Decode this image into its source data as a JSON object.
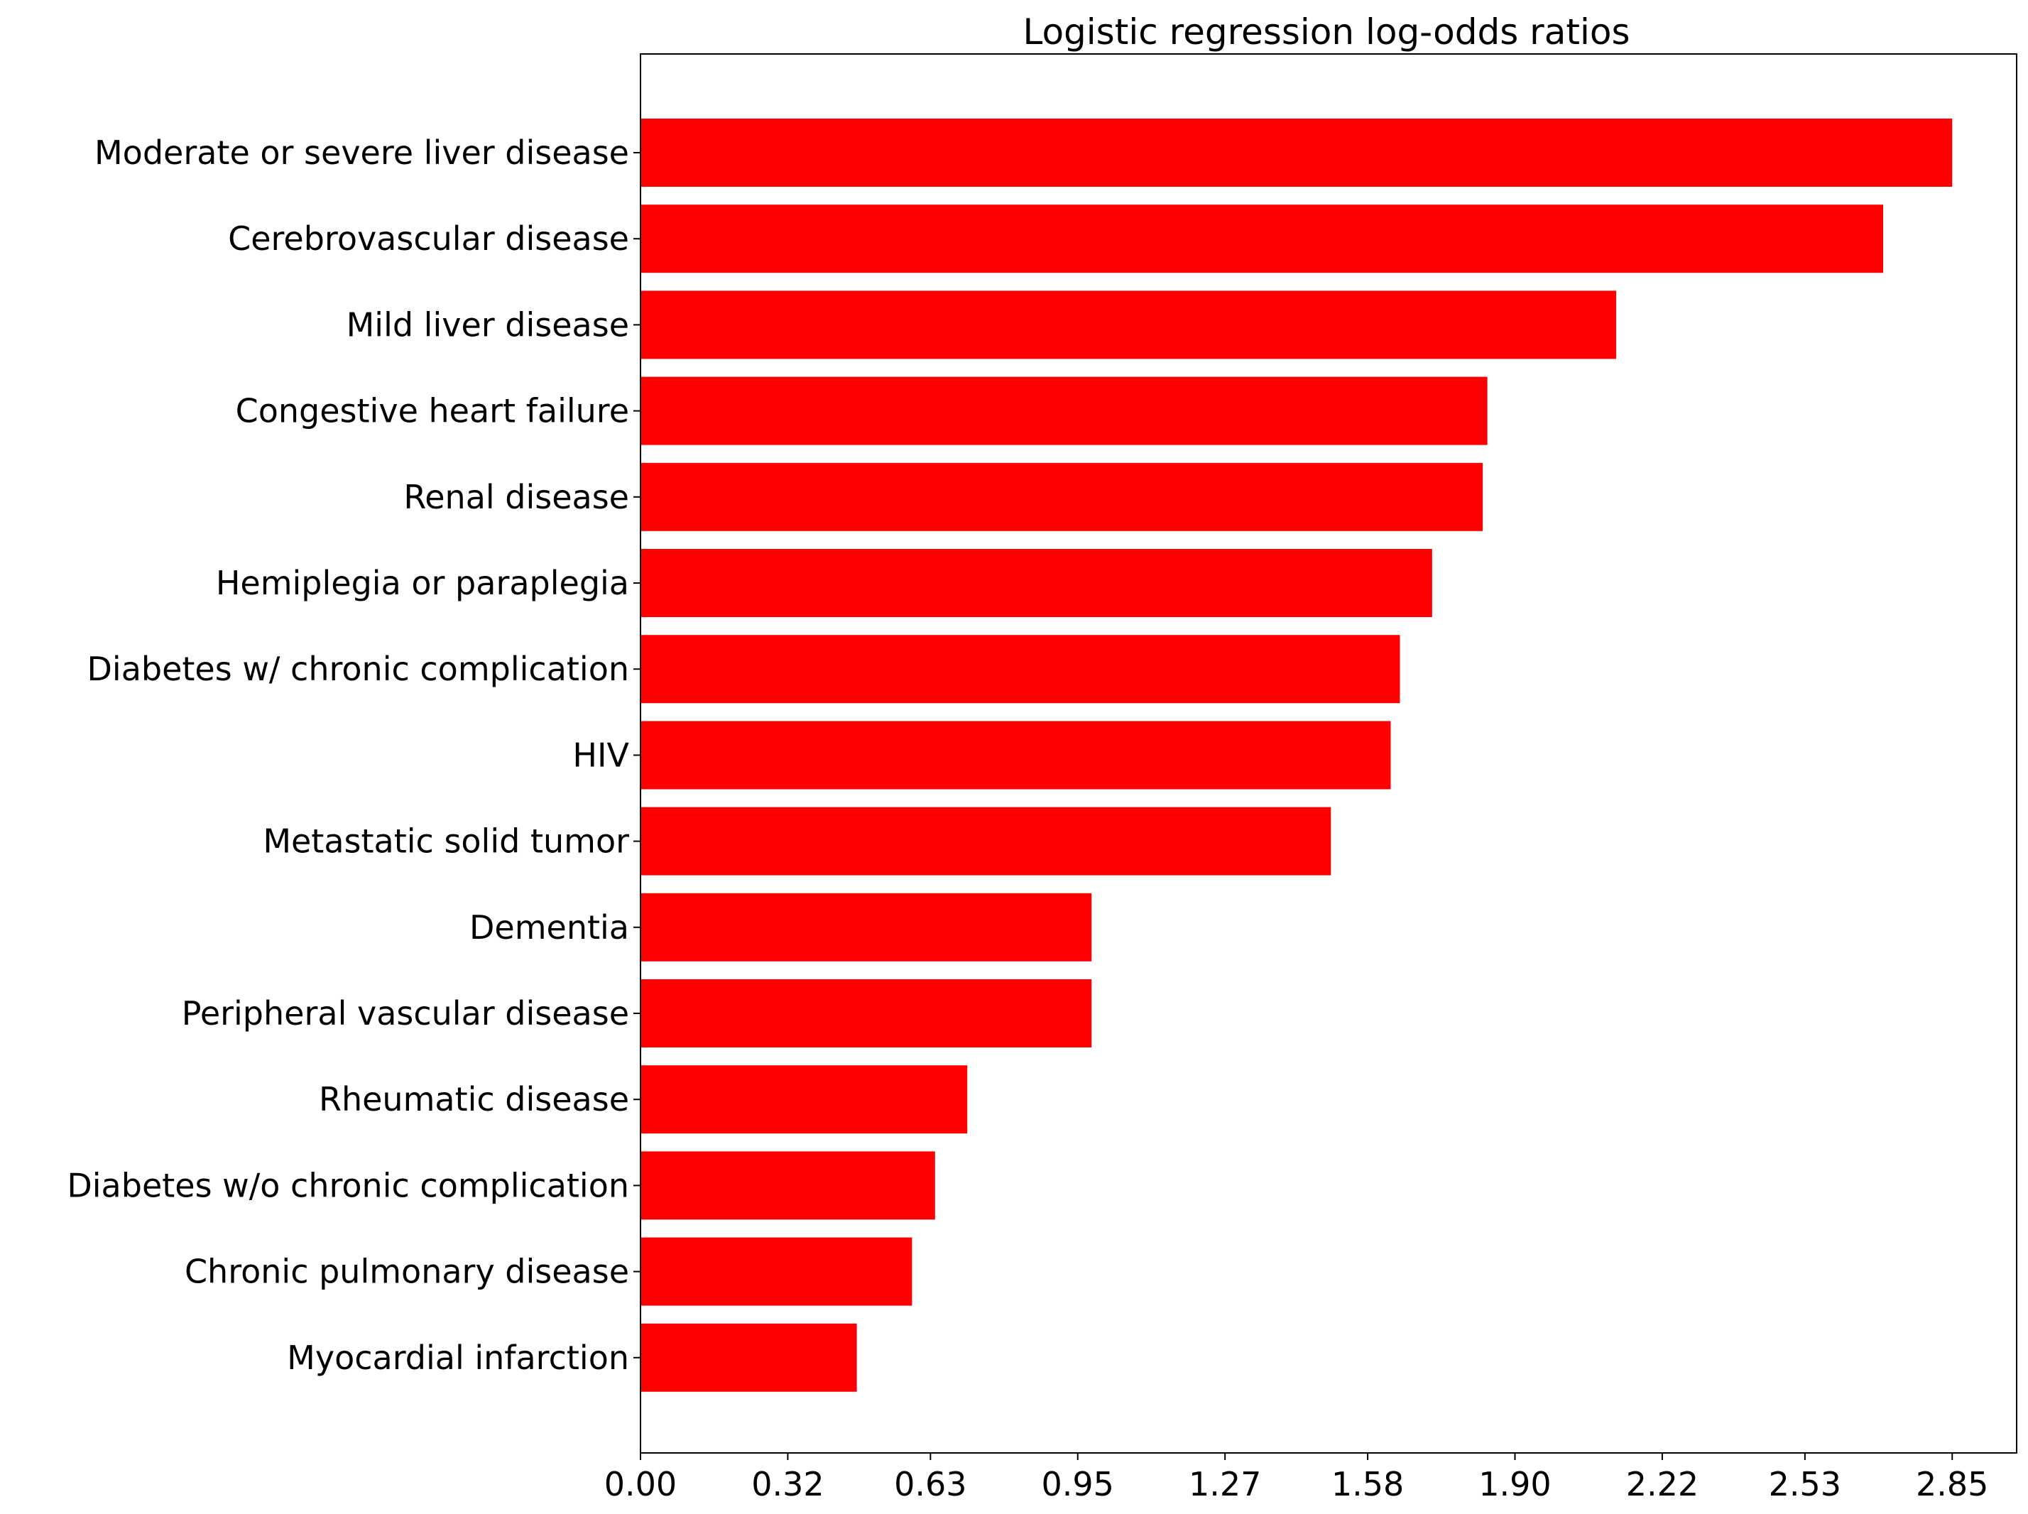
{
  "chart_data": {
    "type": "bar",
    "orientation": "horizontal",
    "title": "Logistic regression log-odds ratios",
    "xlabel": "",
    "ylabel": "",
    "categories": [
      "Moderate or severe liver disease",
      "Cerebrovascular disease",
      "Mild liver disease",
      "Congestive heart failure",
      "Renal disease",
      "Hemiplegia or paraplegia",
      "Diabetes w/ chronic complication",
      "HIV",
      "Metastatic solid tumor",
      "Dementia",
      "Peripheral vascular disease",
      "Rheumatic disease",
      "Diabetes w/o chronic complication",
      "Chronic pulmonary disease",
      "Myocardial infarction"
    ],
    "values": [
      2.85,
      2.7,
      2.12,
      1.84,
      1.83,
      1.72,
      1.65,
      1.63,
      1.5,
      0.98,
      0.98,
      0.71,
      0.64,
      0.59,
      0.47
    ],
    "xticks": [
      "0.00",
      "0.32",
      "0.63",
      "0.95",
      "1.27",
      "1.58",
      "1.90",
      "2.22",
      "2.53",
      "2.85"
    ],
    "xtick_values": [
      0.0,
      0.32,
      0.63,
      0.95,
      1.27,
      1.58,
      1.9,
      2.22,
      2.53,
      2.85
    ],
    "xlim": [
      0,
      2.99
    ],
    "bar_color": "#ff0000",
    "grid": false,
    "legend": "none"
  }
}
